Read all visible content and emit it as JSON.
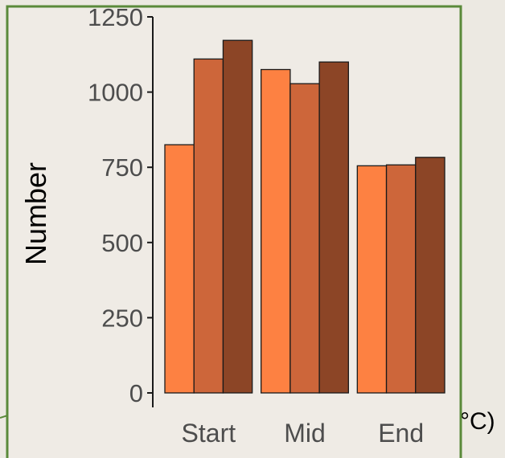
{
  "cropped_label": "°C)",
  "colors": {
    "background": "#ece9e2",
    "panel": "#efebe5",
    "frame": "#5a8a3a",
    "bar_outline": "#1a1a1a"
  },
  "chart_data": {
    "type": "bar",
    "title": "",
    "xlabel": "",
    "ylabel": "Number",
    "categories": [
      "Start",
      "Mid",
      "End"
    ],
    "ylim": [
      0,
      1250
    ],
    "yticks": [
      0,
      250,
      500,
      750,
      1000,
      1250
    ],
    "ytick_labels": [
      "0",
      "250",
      "500",
      "750",
      "1000",
      "1250"
    ],
    "grid": false,
    "legend": "none",
    "series": [
      {
        "values": [
          825,
          1075,
          755
        ],
        "color": "#fd8142"
      },
      {
        "values": [
          1110,
          1028,
          758
        ],
        "color": "#cd663a"
      },
      {
        "values": [
          1172,
          1100,
          783
        ],
        "color": "#8c4526"
      }
    ]
  }
}
